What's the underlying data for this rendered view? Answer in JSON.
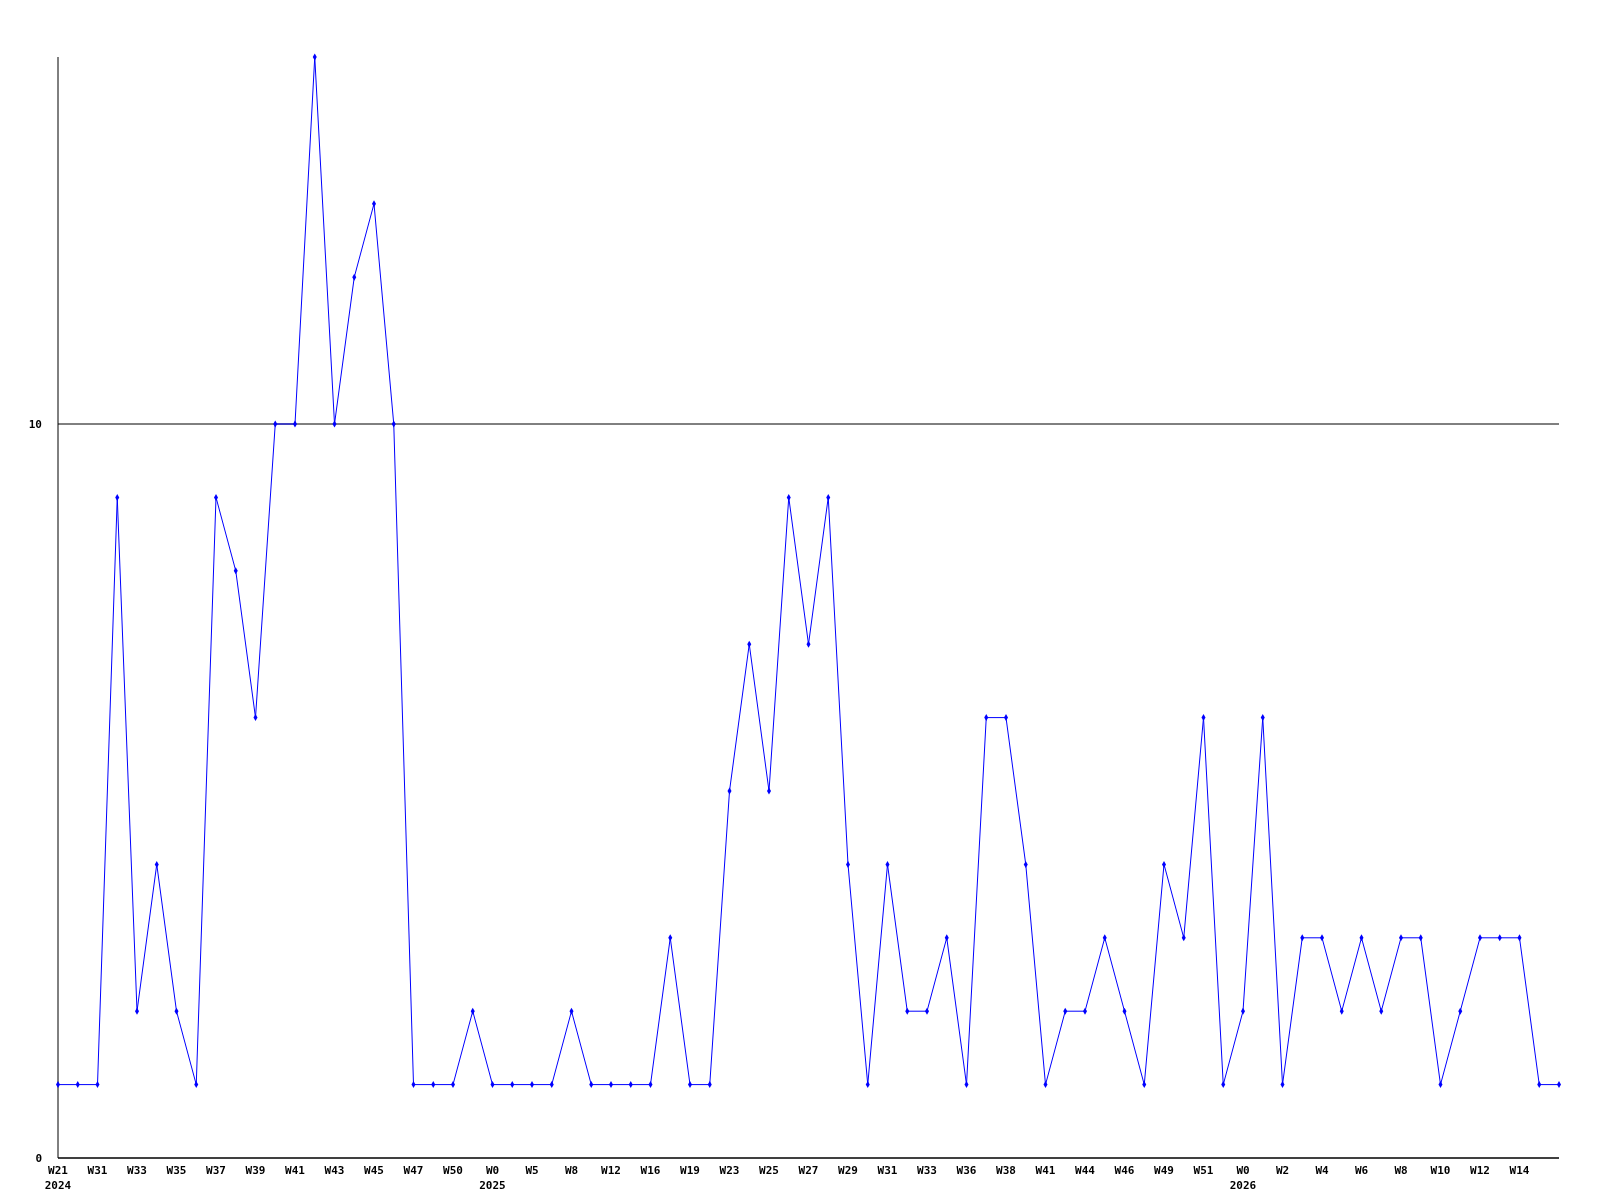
{
  "chart_data": {
    "type": "line",
    "categories": [
      "W21\n2024",
      null,
      "W31",
      null,
      "W33",
      null,
      "W35",
      null,
      "W37",
      null,
      "W39",
      null,
      "W41",
      null,
      "W43",
      null,
      "W45",
      null,
      "W47",
      null,
      "W50",
      null,
      "W0\n2025",
      null,
      "W5",
      null,
      "W8",
      null,
      "W12",
      null,
      "W16",
      null,
      "W19",
      null,
      "W23",
      null,
      "W25",
      null,
      "W27",
      null,
      "W29",
      null,
      "W31",
      null,
      "W33",
      null,
      "W36",
      null,
      "W38",
      null,
      "W41",
      null,
      "W44",
      null,
      "W46",
      null,
      "W49",
      null,
      "W51",
      null,
      "W0\n2026",
      null,
      "W2",
      null,
      "W4",
      null,
      "W6",
      null,
      "W8",
      null,
      "W10",
      null,
      "W12",
      null,
      "W14",
      null,
      null
    ],
    "series": [
      {
        "color": "#0000ff",
        "values": [
          1,
          1,
          1,
          9,
          2,
          4,
          2,
          1,
          9,
          8,
          6,
          10,
          10,
          15,
          10,
          12,
          13,
          10,
          1,
          1,
          1,
          2,
          1,
          1,
          1,
          1,
          2,
          1,
          1,
          1,
          1,
          3,
          1,
          1,
          5,
          7,
          5,
          9,
          7,
          9,
          4,
          1,
          4,
          2,
          2,
          3,
          1,
          6,
          6,
          4,
          1,
          2,
          2,
          3,
          2,
          1,
          4,
          3,
          6,
          1,
          2,
          6,
          1,
          3,
          3,
          2,
          3,
          2,
          3,
          3,
          1,
          2,
          3,
          3,
          3,
          1,
          1
        ]
      }
    ],
    "ylim": [
      0,
      15
    ],
    "yticks": [
      0,
      10
    ],
    "grid": "y",
    "marker": "diamond",
    "line_style": "solid"
  }
}
